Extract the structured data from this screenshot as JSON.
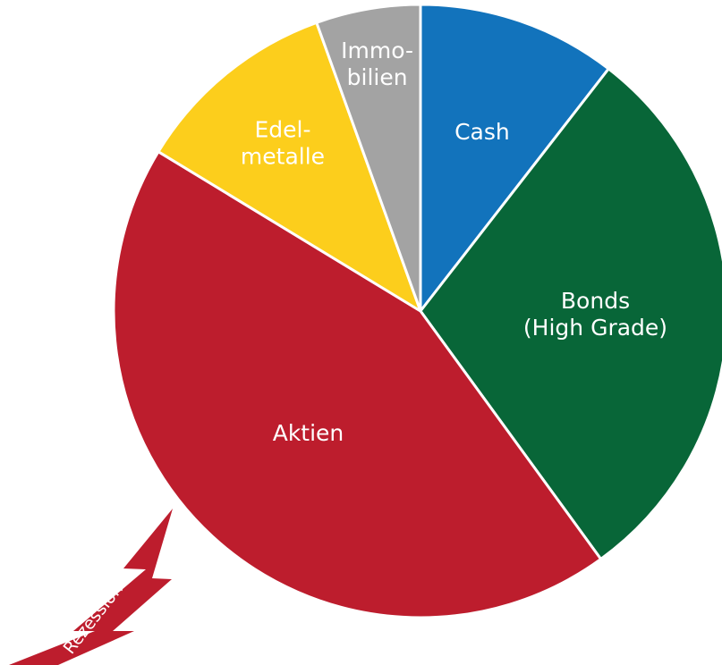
{
  "chart_data": {
    "type": "pie",
    "title": "",
    "start_angle_deg": 0,
    "direction": "clockwise",
    "slices": [
      {
        "label_lines": [
          "Cash"
        ],
        "value": 10.5,
        "color": "#1273BC"
      },
      {
        "label_lines": [
          "Bonds",
          "(High Grade)"
        ],
        "value": 29.5,
        "color": "#086638"
      },
      {
        "label_lines": [
          "Aktien"
        ],
        "value": 43.7,
        "color": "#BD1D2D"
      },
      {
        "label_lines": [
          "Edel-",
          "metalle"
        ],
        "value": 10.8,
        "color": "#FCCE1C"
      },
      {
        "label_lines": [
          "Immo-",
          "bilien"
        ],
        "value": 5.5,
        "color": "#A3A3A3"
      }
    ],
    "annotation": {
      "text": "Rezession",
      "shape": "lightning-bolt",
      "color": "#BD1D2D"
    }
  }
}
